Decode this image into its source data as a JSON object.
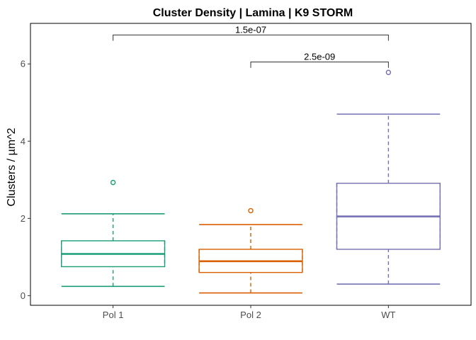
{
  "chart_data": {
    "type": "box",
    "title": "Cluster Density | Lamina | K9 STORM",
    "xlabel": "",
    "ylabel": "Clusters / µm^2",
    "ylim": [
      -0.25,
      7.05
    ],
    "yticks": [
      0,
      2,
      4,
      6
    ],
    "grid": false,
    "legend": "none",
    "categories": [
      "Pol 1",
      "Pol 2",
      "WT"
    ],
    "series": [
      {
        "category": "Pol 1",
        "color": "#1b9e77",
        "whisker_low": 0.24,
        "q1": 0.75,
        "median": 1.08,
        "q3": 1.42,
        "whisker_high": 2.12,
        "outliers": [
          2.93
        ]
      },
      {
        "category": "Pol 2",
        "color": "#d95f02",
        "whisker_low": 0.07,
        "q1": 0.6,
        "median": 0.89,
        "q3": 1.2,
        "whisker_high": 1.84,
        "outliers": [
          2.2
        ]
      },
      {
        "category": "WT",
        "color": "#7570b3",
        "whisker_low": 0.3,
        "q1": 1.2,
        "median": 2.05,
        "q3": 2.91,
        "whisker_high": 4.7,
        "outliers": [
          5.78
        ]
      }
    ],
    "comparisons": [
      {
        "from": "Pol 1",
        "to": "WT",
        "y": 6.75,
        "tip": 6.6,
        "label": "1.5e-07"
      },
      {
        "from": "Pol 2",
        "to": "WT",
        "y": 6.05,
        "tip": 5.9,
        "label": "2.5e-09"
      }
    ]
  }
}
